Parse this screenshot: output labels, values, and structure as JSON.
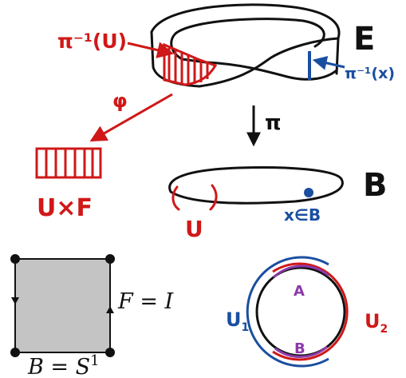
{
  "labels": {
    "total_space": "E",
    "preimage_U": "π⁻¹(U)",
    "preimage_x": "π⁻¹(x)",
    "trivialization": "φ",
    "projection": "π",
    "base_space": "B",
    "point_label": "x∈B",
    "open_set": "U",
    "product": "U×F",
    "fiber_eq_lhs": "F",
    "fiber_eq_rhs": "I",
    "base_eq_lhs": "B",
    "base_eq_rhs": "S",
    "base_eq_sup": "1",
    "cover_left": "U",
    "cover_left_sub": "1",
    "cover_right": "U",
    "cover_right_sub": "2",
    "overlap_top": "A",
    "overlap_bottom": "B"
  },
  "colors": {
    "ink": "#111111",
    "red": "#d01818",
    "blue": "#1a4fa0",
    "purple": "#8c3aa8",
    "square_fill": "#c4c4c4"
  }
}
